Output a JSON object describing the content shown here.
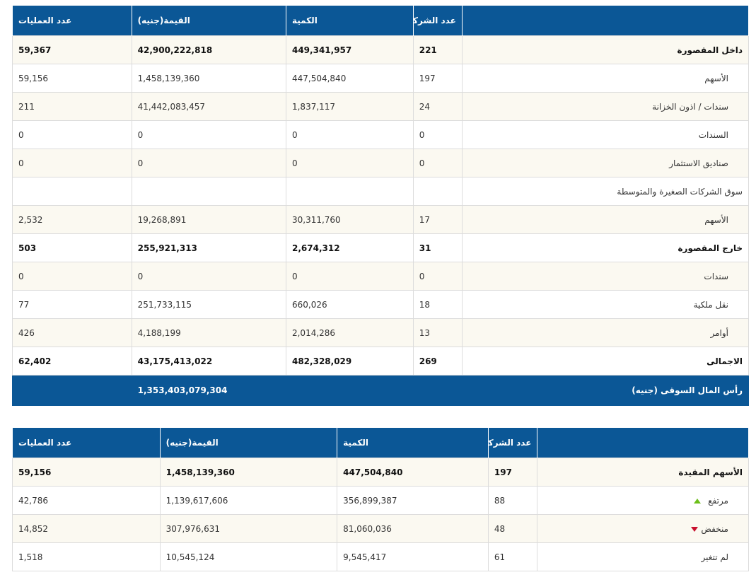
{
  "colors": {
    "header_bg": "#0b5796",
    "alt_row_bg": "#fbf9f1",
    "up": "#6cbf1a",
    "down": "#c8102e"
  },
  "table1": {
    "headers": [
      "",
      "عدد الشركات",
      "الكمية",
      "القيمة(جنيه)",
      "عدد العمليات"
    ],
    "rows": [
      {
        "label": "داخل المقصورة",
        "companies": "221",
        "quantity": "449,341,957",
        "value": "42,900,222,818",
        "trades": "59,367"
      },
      {
        "label": "الأسهم",
        "companies": "197",
        "quantity": "447,504,840",
        "value": "1,458,139,360",
        "trades": "59,156"
      },
      {
        "label": "سندات / اذون الخزانة",
        "companies": "24",
        "quantity": "1,837,117",
        "value": "41,442,083,457",
        "trades": "211"
      },
      {
        "label": "السندات",
        "companies": "0",
        "quantity": "0",
        "value": "0",
        "trades": "0"
      },
      {
        "label": "صناديق الاستثمار",
        "companies": "0",
        "quantity": "0",
        "value": "0",
        "trades": "0"
      },
      {
        "label": "سوق الشركات الصغيرة والمتوسطة",
        "companies": "",
        "quantity": "",
        "value": "",
        "trades": ""
      },
      {
        "label": "الأسهم",
        "companies": "17",
        "quantity": "30,311,760",
        "value": "19,268,891",
        "trades": "2,532"
      },
      {
        "label": "خارج المقصورة",
        "companies": "31",
        "quantity": "2,674,312",
        "value": "255,921,313",
        "trades": "503"
      },
      {
        "label": "سندات",
        "companies": "0",
        "quantity": "0",
        "value": "0",
        "trades": "0"
      },
      {
        "label": "نقل ملكية",
        "companies": "18",
        "quantity": "660,026",
        "value": "251,733,115",
        "trades": "77"
      },
      {
        "label": "أوامر",
        "companies": "13",
        "quantity": "2,014,286",
        "value": "4,188,199",
        "trades": "426"
      },
      {
        "label": "الاجمالى",
        "companies": "269",
        "quantity": "482,328,029",
        "value": "43,175,413,022",
        "trades": "62,402"
      }
    ],
    "market_cap": {
      "label": "رأس المال السوقى (جنيه)",
      "value": "1,353,403,079,304"
    }
  },
  "table2": {
    "headers": [
      "",
      "عدد الشركات",
      "الكمية",
      "القيمة(جنيه)",
      "عدد العمليات"
    ],
    "rows": [
      {
        "label": "الأسهم المقيدة",
        "companies": "197",
        "quantity": "447,504,840",
        "value": "1,458,139,360",
        "trades": "59,156",
        "icon": ""
      },
      {
        "label": "مرتفع",
        "companies": "88",
        "quantity": "356,899,387",
        "value": "1,139,617,606",
        "trades": "42,786",
        "icon": "up-arrow-icon"
      },
      {
        "label": "منخفض",
        "companies": "48",
        "quantity": "81,060,036",
        "value": "307,976,631",
        "trades": "14,852",
        "icon": "down-arrow-icon"
      },
      {
        "label": "لم تتغير",
        "companies": "61",
        "quantity": "9,545,417",
        "value": "10,545,124",
        "trades": "1,518",
        "icon": ""
      }
    ]
  }
}
